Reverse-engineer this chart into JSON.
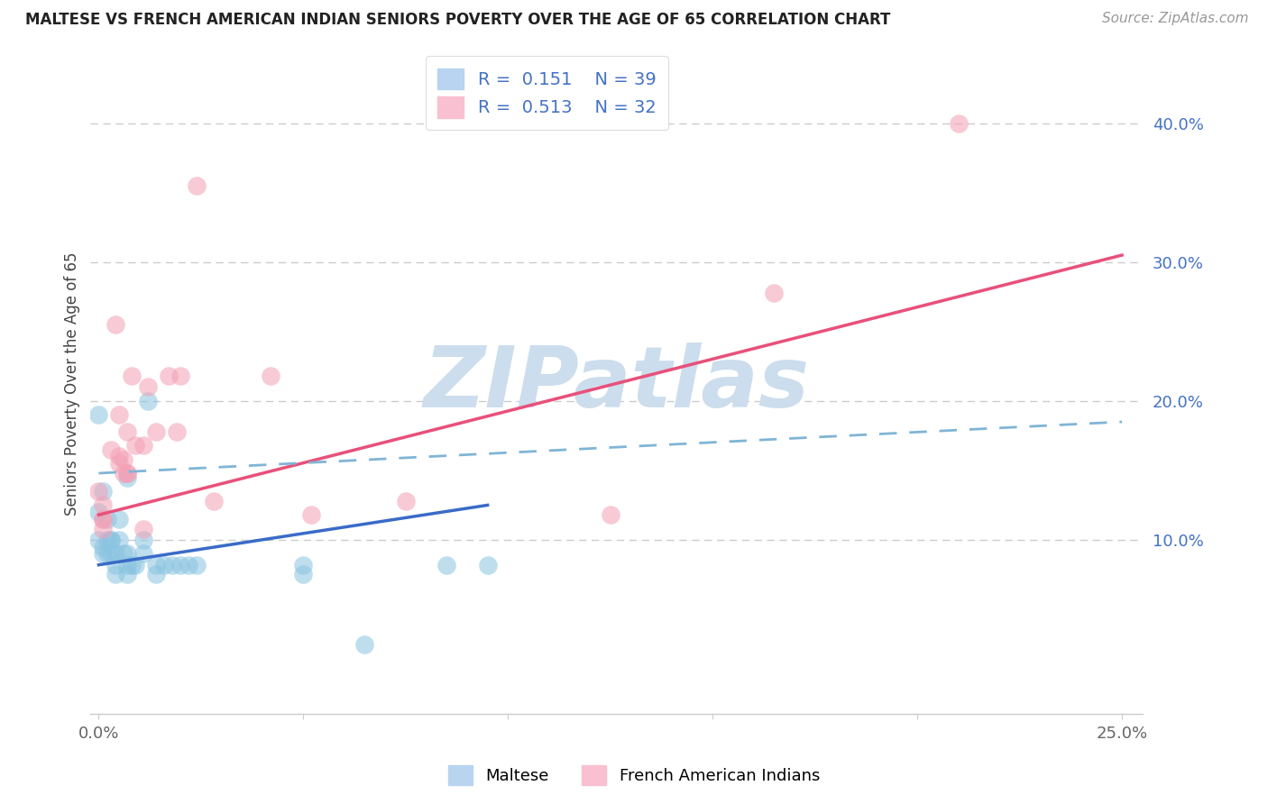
{
  "title": "MALTESE VS FRENCH AMERICAN INDIAN SENIORS POVERTY OVER THE AGE OF 65 CORRELATION CHART",
  "source": "Source: ZipAtlas.com",
  "ylabel": "Seniors Poverty Over the Age of 65",
  "xlim": [
    -0.002,
    0.255
  ],
  "ylim": [
    -0.025,
    0.45
  ],
  "xticks": [
    0.0,
    0.05,
    0.1,
    0.15,
    0.2,
    0.25
  ],
  "xtick_labels": [
    "0.0%",
    "",
    "",
    "",
    "",
    "25.0%"
  ],
  "yticks_right": [
    0.1,
    0.2,
    0.3,
    0.4
  ],
  "ytick_labels_right": [
    "10.0%",
    "20.0%",
    "30.0%",
    "40.0%"
  ],
  "blue_color": "#89c4e1",
  "pink_color": "#f4a0b5",
  "blue_scatter": [
    [
      0.0,
      0.19
    ],
    [
      0.0,
      0.12
    ],
    [
      0.0,
      0.1
    ],
    [
      0.001,
      0.095
    ],
    [
      0.001,
      0.09
    ],
    [
      0.001,
      0.135
    ],
    [
      0.002,
      0.115
    ],
    [
      0.002,
      0.1
    ],
    [
      0.002,
      0.09
    ],
    [
      0.003,
      0.1
    ],
    [
      0.003,
      0.1
    ],
    [
      0.003,
      0.09
    ],
    [
      0.004,
      0.09
    ],
    [
      0.004,
      0.082
    ],
    [
      0.004,
      0.075
    ],
    [
      0.005,
      0.115
    ],
    [
      0.005,
      0.1
    ],
    [
      0.006,
      0.09
    ],
    [
      0.007,
      0.145
    ],
    [
      0.007,
      0.09
    ],
    [
      0.007,
      0.082
    ],
    [
      0.007,
      0.075
    ],
    [
      0.008,
      0.082
    ],
    [
      0.009,
      0.082
    ],
    [
      0.011,
      0.1
    ],
    [
      0.011,
      0.09
    ],
    [
      0.012,
      0.2
    ],
    [
      0.014,
      0.082
    ],
    [
      0.014,
      0.075
    ],
    [
      0.016,
      0.082
    ],
    [
      0.018,
      0.082
    ],
    [
      0.02,
      0.082
    ],
    [
      0.022,
      0.082
    ],
    [
      0.024,
      0.082
    ],
    [
      0.05,
      0.082
    ],
    [
      0.05,
      0.075
    ],
    [
      0.065,
      0.025
    ],
    [
      0.085,
      0.082
    ],
    [
      0.095,
      0.082
    ]
  ],
  "pink_scatter": [
    [
      0.0,
      0.135
    ],
    [
      0.001,
      0.125
    ],
    [
      0.001,
      0.115
    ],
    [
      0.001,
      0.115
    ],
    [
      0.001,
      0.108
    ],
    [
      0.003,
      0.165
    ],
    [
      0.004,
      0.255
    ],
    [
      0.005,
      0.155
    ],
    [
      0.005,
      0.19
    ],
    [
      0.005,
      0.16
    ],
    [
      0.006,
      0.148
    ],
    [
      0.006,
      0.158
    ],
    [
      0.007,
      0.148
    ],
    [
      0.007,
      0.178
    ],
    [
      0.007,
      0.148
    ],
    [
      0.008,
      0.218
    ],
    [
      0.009,
      0.168
    ],
    [
      0.011,
      0.168
    ],
    [
      0.011,
      0.108
    ],
    [
      0.012,
      0.21
    ],
    [
      0.014,
      0.178
    ],
    [
      0.017,
      0.218
    ],
    [
      0.019,
      0.178
    ],
    [
      0.02,
      0.218
    ],
    [
      0.024,
      0.355
    ],
    [
      0.028,
      0.128
    ],
    [
      0.042,
      0.218
    ],
    [
      0.052,
      0.118
    ],
    [
      0.075,
      0.128
    ],
    [
      0.125,
      0.118
    ],
    [
      0.165,
      0.278
    ],
    [
      0.21,
      0.4
    ]
  ],
  "blue_line": [
    [
      0.0,
      0.082
    ],
    [
      0.095,
      0.125
    ]
  ],
  "pink_line": [
    [
      0.0,
      0.118
    ],
    [
      0.25,
      0.305
    ]
  ],
  "blue_dash_line": [
    [
      0.0,
      0.148
    ],
    [
      0.25,
      0.185
    ]
  ],
  "watermark_text": "ZIPatlas",
  "watermark_color": "#ccdded",
  "background_color": "#ffffff",
  "grid_color": "#cccccc",
  "blue_line_color": "#3a6bc8",
  "pink_line_color": "#e8507a",
  "blue_dash_color": "#7fb5d5",
  "title_color": "#222222",
  "source_color": "#999999",
  "ylabel_color": "#444444",
  "ytick_color": "#4472c4",
  "xtick_color": "#666666"
}
